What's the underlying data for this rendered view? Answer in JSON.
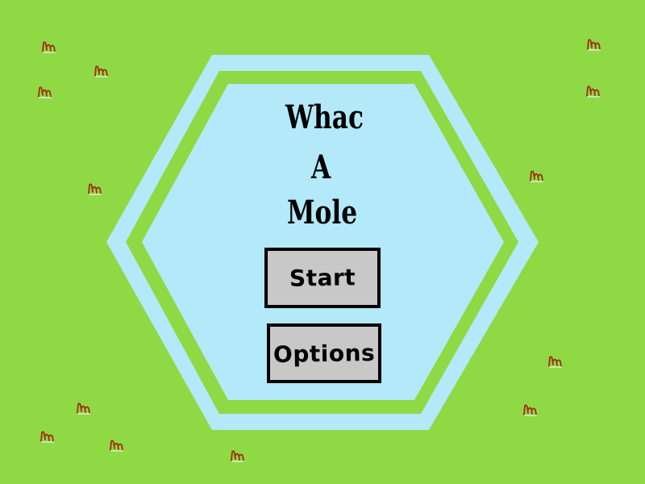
{
  "game": {
    "title_lines": [
      "Whac",
      "A",
      "Mole"
    ],
    "start_label": "Start",
    "options_label": "Options"
  },
  "colors": {
    "grass_background": "#8ed944",
    "hexagon_outer": "#b3e9f8",
    "hexagon_band": "#8ed944",
    "hexagon_inner": "#b3e9f8",
    "button_fill": "#c8c8c8",
    "button_border": "#000000",
    "grass_tuft": "#a42a18"
  },
  "decorations": {
    "grass_tuft_icon": "grass-tuft-icon"
  }
}
